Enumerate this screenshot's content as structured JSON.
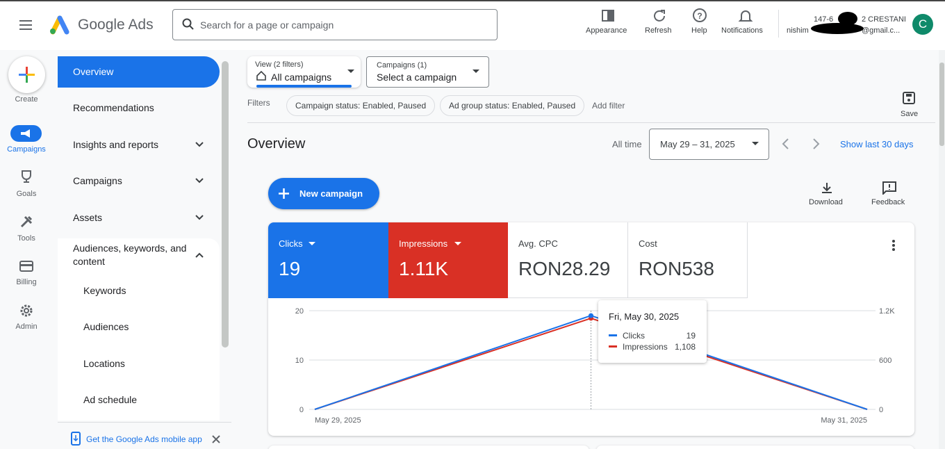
{
  "header": {
    "product": "Google Ads",
    "search_placeholder": "Search for a page or campaign",
    "actions": [
      "Appearance",
      "Refresh",
      "Help",
      "Notifications"
    ],
    "account": {
      "line1_start": "147-6",
      "line1_end": "2 CRESTANI",
      "line2_start": "nishim",
      "line2_end": "@gmail.c..."
    },
    "avatar": "C"
  },
  "rail": {
    "create": "Create",
    "items": [
      "Campaigns",
      "Goals",
      "Tools",
      "Billing",
      "Admin"
    ]
  },
  "nav": {
    "items": [
      "Overview",
      "Recommendations",
      "Insights and reports",
      "Campaigns",
      "Assets",
      "Audiences, keywords, and content"
    ],
    "subitems": [
      "Keywords",
      "Audiences",
      "Locations",
      "Ad schedule"
    ],
    "promo": "Get the Google Ads mobile app"
  },
  "filters": {
    "view_label": "View (2 filters)",
    "view_value": "All campaigns",
    "campaigns_label": "Campaigns (1)",
    "campaigns_value": "Select a campaign",
    "filters_label": "Filters",
    "chips": [
      "Campaign status: Enabled, Paused",
      "Ad group status: Enabled, Paused"
    ],
    "add_filter": "Add filter",
    "save": "Save"
  },
  "overview": {
    "title": "Overview",
    "all_time": "All time",
    "date_range": "May 29 – 31, 2025",
    "show_last": "Show last 30 days",
    "new_campaign": "New campaign",
    "download": "Download",
    "feedback": "Feedback"
  },
  "metrics": [
    {
      "label": "Clicks",
      "value": 19
    },
    {
      "label": "Impressions",
      "value": "1.11K"
    },
    {
      "label": "Avg. CPC",
      "value": "RON28.29"
    },
    {
      "label": "Cost",
      "value": "RON538"
    }
  ],
  "chart_data": {
    "type": "line",
    "categories": [
      "May 29, 2025",
      null,
      "May 31, 2025"
    ],
    "series": [
      {
        "name": "Clicks",
        "color": "#1a73e8",
        "values": [
          0,
          19,
          0
        ]
      },
      {
        "name": "Impressions",
        "color": "#d93025",
        "values": [
          0,
          1108,
          0
        ],
        "axis": "y2"
      }
    ],
    "ylim": [
      0,
      20
    ],
    "yticks": [
      0,
      10,
      20
    ],
    "y2lim": [
      0,
      1200
    ],
    "y2ticks": [
      0,
      600,
      {
        "value": 1200,
        "label": "1.2K"
      }
    ],
    "grid": true,
    "tooltip": {
      "title": "Fri, May 30, 2025",
      "labels": [
        "19",
        "1,108"
      ]
    }
  }
}
